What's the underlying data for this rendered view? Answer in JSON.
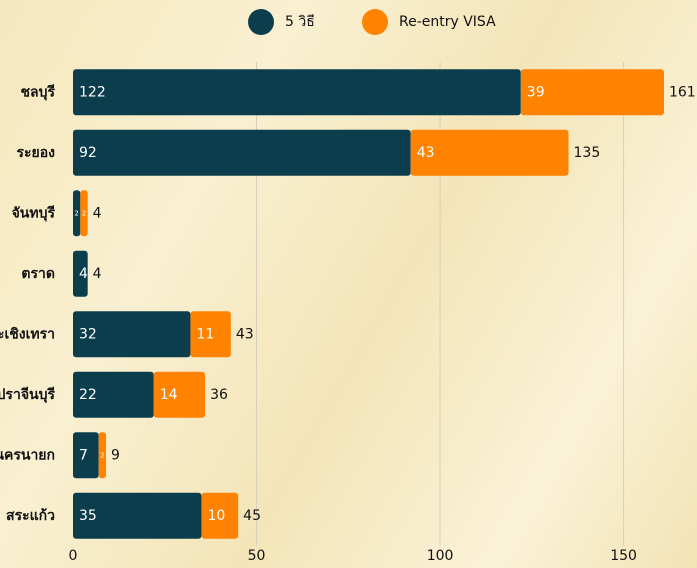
{
  "chart_data": {
    "type": "stacked_barh",
    "categories": [
      "ชลบุรี",
      "ระยอง",
      "จันทบุรี",
      "ตราด",
      "ฉะเชิงเทรา",
      "ปราจีนบุรี",
      "นครนายก",
      "สระแก้ว"
    ],
    "series": [
      {
        "name": "5 วิธี",
        "color": "#0b3d4c",
        "values": [
          122,
          92,
          2,
          4,
          32,
          22,
          7,
          35
        ]
      },
      {
        "name": "Re-entry VISA",
        "color": "#ff8200",
        "values": [
          39,
          43,
          2,
          null,
          11,
          14,
          2,
          10
        ]
      }
    ],
    "totals": [
      161,
      135,
      4,
      4,
      43,
      36,
      9,
      45
    ],
    "xlim": [
      0,
      170
    ],
    "xticks": [
      0,
      50,
      100,
      150
    ],
    "grid": true,
    "legend": "top"
  }
}
